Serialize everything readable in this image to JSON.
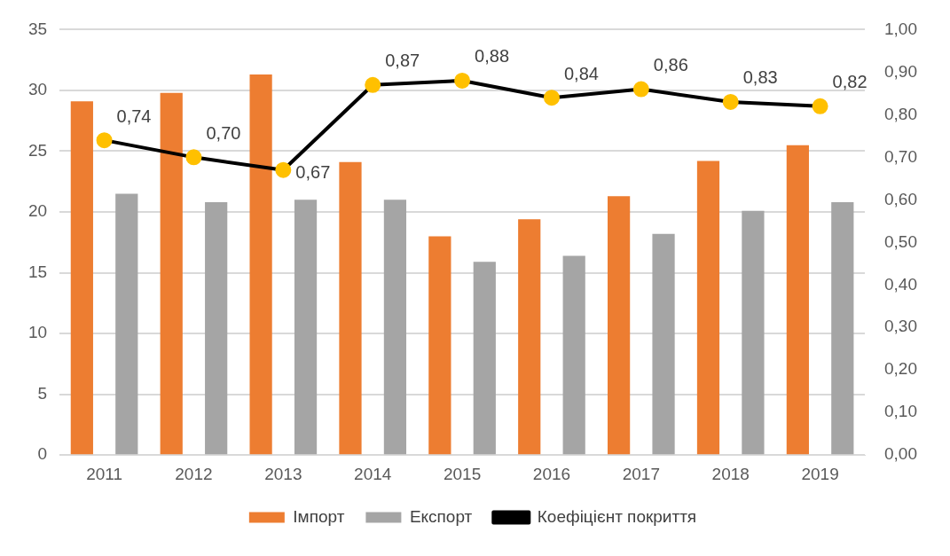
{
  "chart_data": {
    "type": "bar",
    "categories": [
      "2011",
      "2012",
      "2013",
      "2014",
      "2015",
      "2016",
      "2017",
      "2018",
      "2019"
    ],
    "series": [
      {
        "name": "Імпорт",
        "color": "#ed7d31",
        "values": [
          29.1,
          29.8,
          31.3,
          24.1,
          18.0,
          19.4,
          21.3,
          24.2,
          25.5
        ]
      },
      {
        "name": "Експорт",
        "color": "#a5a5a5",
        "values": [
          21.5,
          20.8,
          21.0,
          21.0,
          15.9,
          16.4,
          18.2,
          20.1,
          20.8
        ]
      },
      {
        "name": "Коефіцієнт покриття",
        "type": "line",
        "axis": "y2",
        "color": "#000000",
        "colors": [
          "#ffc000",
          "#ffc000",
          "#ffc000",
          "#ffc000",
          "#ffc000",
          "#ffc000",
          "#ffc000",
          "#ffc000",
          "#ffc000"
        ],
        "marker": "circle",
        "values": [
          0.74,
          0.7,
          0.67,
          0.87,
          0.88,
          0.84,
          0.86,
          0.83,
          0.82
        ],
        "value_labels": [
          "0,74",
          "0,70",
          "0,67",
          "0,87",
          "0,88",
          "0,84",
          "0,86",
          "0,83",
          "0,82"
        ]
      }
    ],
    "ylim": [
      0,
      35
    ],
    "yticks": [
      0,
      5,
      10,
      15,
      20,
      25,
      30,
      35
    ],
    "y2lim": [
      0,
      1
    ],
    "y2ticks": [
      {
        "value": 0,
        "label": "0,00"
      },
      {
        "value": 0.1,
        "label": "0,10"
      },
      {
        "value": 0.2,
        "label": "0,20"
      },
      {
        "value": 0.3,
        "label": "0,30"
      },
      {
        "value": 0.4,
        "label": "0,40"
      },
      {
        "value": 0.5,
        "label": "0,50"
      },
      {
        "value": 0.6,
        "label": "0,60"
      },
      {
        "value": 0.7,
        "label": "0,70"
      },
      {
        "value": 0.8,
        "label": "0,80"
      },
      {
        "value": 0.9,
        "label": "0,90"
      },
      {
        "value": 1,
        "label": "1,00"
      }
    ],
    "grid": "y",
    "legend": "bottom"
  }
}
